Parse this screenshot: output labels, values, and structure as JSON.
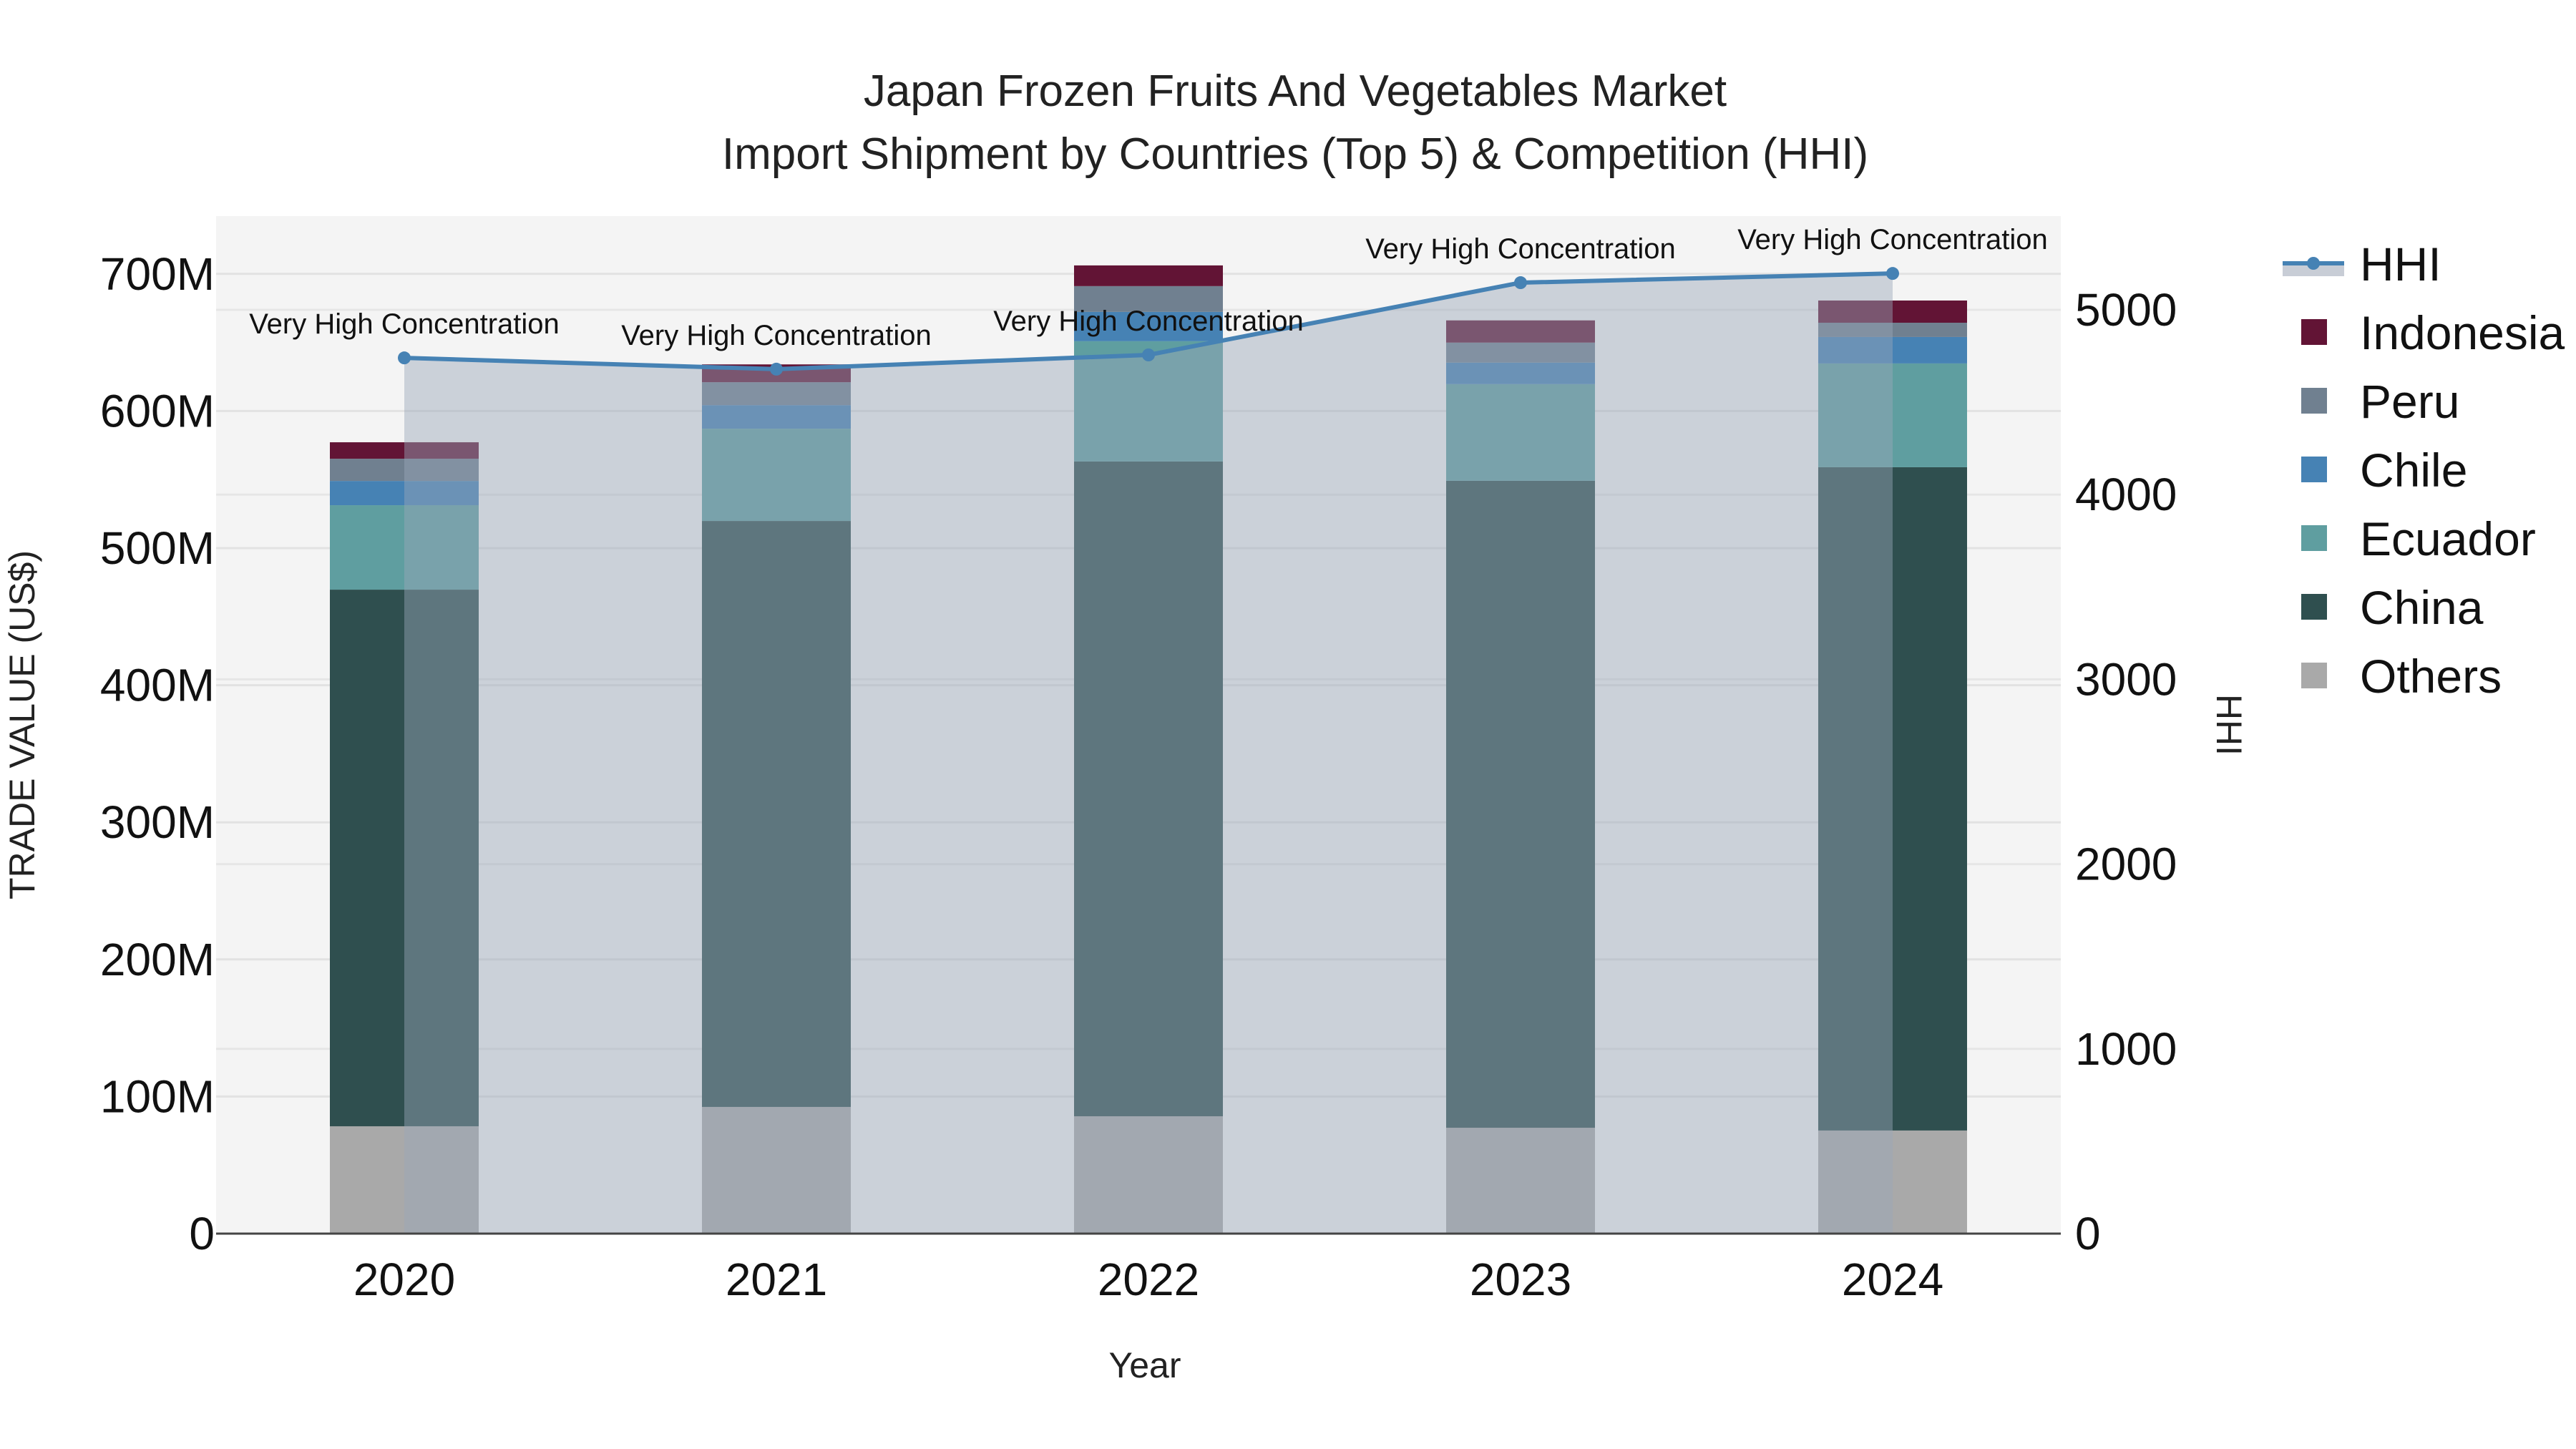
{
  "chart_data": {
    "type": "bar",
    "title": "Japan Frozen Fruits And Vegetables Market",
    "subtitle": "Import Shipment by Countries (Top 5) & Competition (HHI)",
    "xlabel": "Year",
    "ylabel": "TRADE VALUE (US$)",
    "y2label": "HHI",
    "categories": [
      "2020",
      "2021",
      "2022",
      "2023",
      "2024"
    ],
    "stacked": true,
    "series": [
      {
        "name": "Others",
        "color": "#a9a9a9",
        "values": [
          78.3,
          92.4,
          85.6,
          77.2,
          75.2
        ]
      },
      {
        "name": "China",
        "color": "#2f4f4f",
        "values": [
          391.4,
          427.4,
          477.6,
          471.9,
          483.8
        ]
      },
      {
        "name": "Ecuador",
        "color": "#5f9ea0",
        "values": [
          61.6,
          67.3,
          87.7,
          70.5,
          75.7
        ]
      },
      {
        "name": "Chile",
        "color": "#4682b4",
        "values": [
          17.7,
          17.2,
          21.4,
          15.7,
          19.3
        ]
      },
      {
        "name": "Peru",
        "color": "#708090",
        "values": [
          16.2,
          16.7,
          18.8,
          14.6,
          10.4
        ]
      },
      {
        "name": "Indonesia",
        "color": "#621435",
        "values": [
          12.0,
          13.0,
          15.1,
          16.2,
          16.2
        ]
      }
    ],
    "line_series": {
      "name": "HHI",
      "color": "#4682b4",
      "axis": "right",
      "values": [
        4740,
        4679,
        4756,
        5147,
        5197
      ]
    },
    "annotations": [
      "Very High Concentration",
      "Very High Concentration",
      "Very High Concentration",
      "Very High Concentration",
      "Very High Concentration"
    ],
    "units": "US$ millions",
    "ylim": [
      0,
      740
    ],
    "y2lim": [
      0,
      5520
    ],
    "yticks": [
      "0",
      "100M",
      "200M",
      "300M",
      "400M",
      "500M",
      "600M",
      "700M"
    ],
    "y2ticks": [
      "0",
      "1000",
      "2000",
      "3000",
      "4000",
      "5000"
    ],
    "grid": true,
    "legend_position": "right",
    "legend": [
      "HHI",
      "Indonesia",
      "Peru",
      "Chile",
      "Ecuador",
      "China",
      "Others"
    ]
  }
}
